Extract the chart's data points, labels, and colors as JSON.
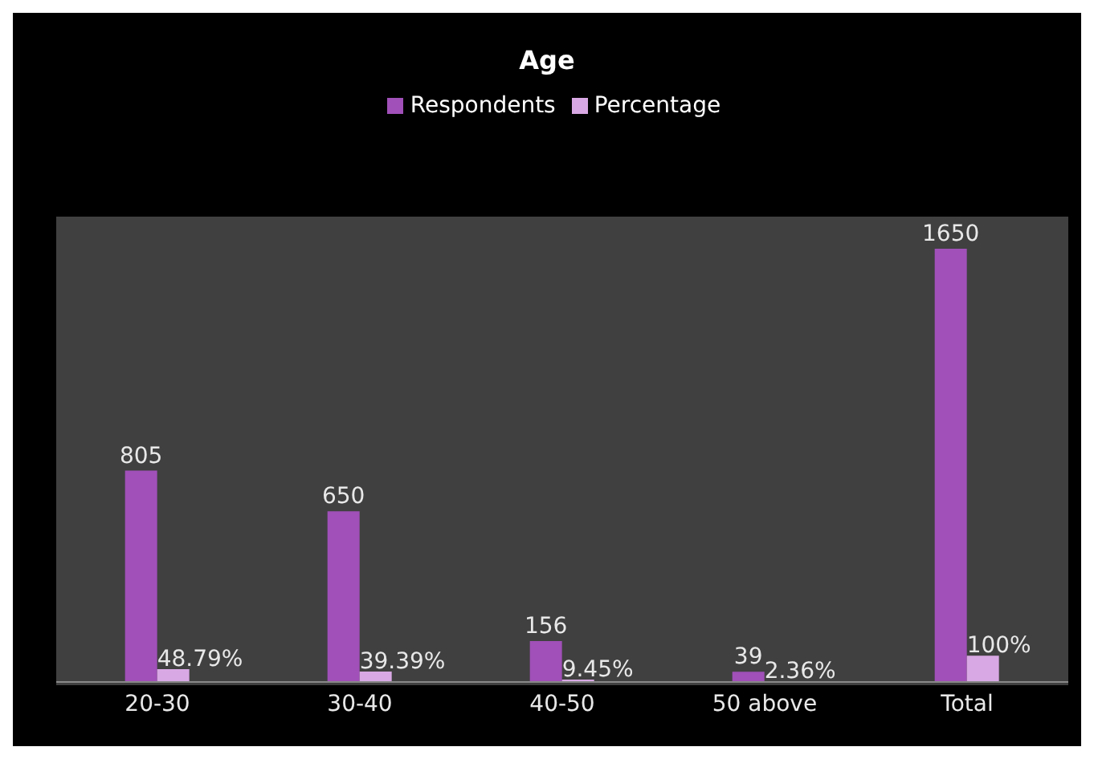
{
  "chart_data": {
    "type": "bar",
    "title": "Age",
    "categories": [
      "20-30",
      "30-40",
      "40-50",
      "50 above",
      "Total"
    ],
    "legend": "top",
    "series": [
      {
        "name": "Respondents",
        "color": "#a050b8",
        "values": [
          805,
          650,
          156,
          39,
          1650
        ],
        "value_labels": [
          "805",
          "650",
          "156",
          "39",
          "1650"
        ]
      },
      {
        "name": "Percentage",
        "color": "#d8a8e4",
        "values": [
          48.79,
          39.39,
          9.45,
          2.36,
          100
        ],
        "value_labels": [
          "48.79%",
          "39.39%",
          "9.45%",
          "2.36%",
          "100%"
        ]
      }
    ]
  }
}
